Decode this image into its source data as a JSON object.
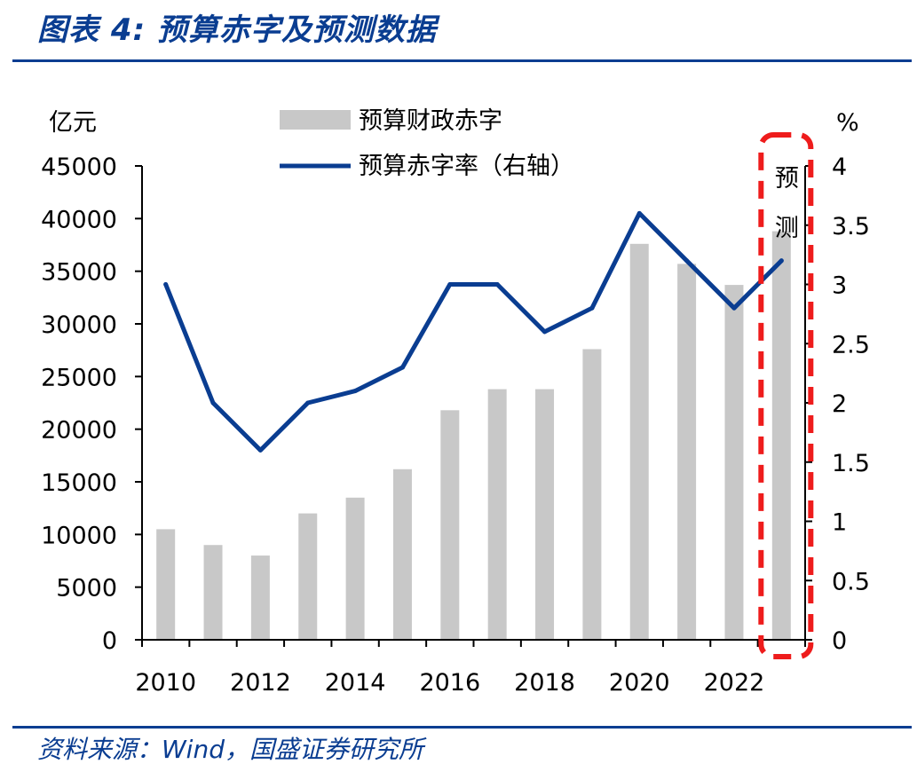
{
  "header": {
    "figure_title": "图表 4:  预算赤字及预测数据",
    "source": "资料来源：Wind，国盛证券研究所"
  },
  "chart_data": {
    "type": "bar+line",
    "categories": [
      "2010",
      "2011",
      "2012",
      "2013",
      "2014",
      "2015",
      "2016",
      "2017",
      "2018",
      "2019",
      "2020",
      "2021",
      "2022",
      "2023"
    ],
    "x_tick_labels": [
      "2010",
      "2012",
      "2014",
      "2016",
      "2018",
      "2020",
      "2022"
    ],
    "series": [
      {
        "name": "预算财政赤字",
        "type": "bar",
        "axis": "left",
        "color": "#c8c8c8",
        "values": [
          10500,
          9000,
          8000,
          12000,
          13500,
          16200,
          21800,
          23800,
          23800,
          27600,
          37600,
          35700,
          33700,
          38800
        ]
      },
      {
        "name": "预算赤字率（右轴）",
        "type": "line",
        "axis": "right",
        "color": "#0a3d91",
        "values": [
          3.0,
          2.0,
          1.6,
          2.0,
          2.1,
          2.3,
          3.0,
          3.0,
          2.6,
          2.8,
          3.6,
          3.2,
          2.8,
          3.2
        ]
      }
    ],
    "y_left": {
      "unit_label": "亿元",
      "range": [
        0,
        45000
      ],
      "ticks": [
        "0",
        "5000",
        "10000",
        "15000",
        "20000",
        "25000",
        "30000",
        "35000",
        "40000",
        "45000"
      ]
    },
    "y_right": {
      "unit_label": "%",
      "range": [
        0,
        4
      ],
      "ticks": [
        "0",
        "0.5",
        "1",
        "1.5",
        "2",
        "2.5",
        "3",
        "3.5",
        "4"
      ]
    },
    "grid": false,
    "legend_position": "top",
    "forecast": {
      "label": "预测",
      "highlighted_category": "2023",
      "border_color": "#ee1c1c"
    }
  }
}
